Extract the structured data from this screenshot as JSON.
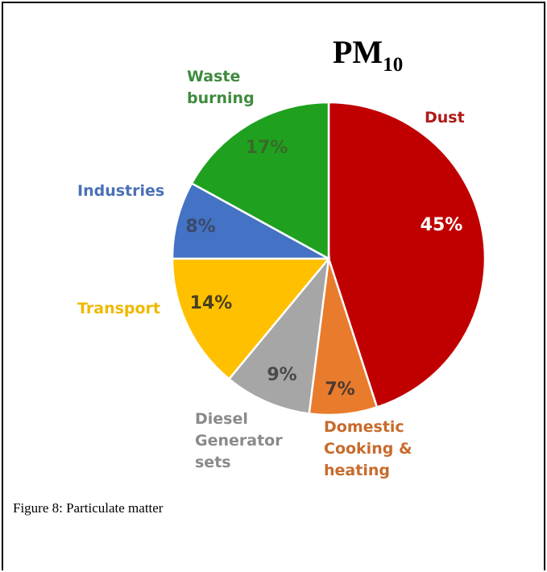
{
  "chart_data": {
    "type": "pie",
    "title": "PM",
    "title_subscript": "10",
    "slices": [
      {
        "label": "Dust",
        "value": 45,
        "value_label": "45%",
        "color": "#c00000",
        "label_color": "#b01818",
        "pct_color": "#ffffff",
        "label_lines": [
          "Dust"
        ]
      },
      {
        "label": "Domestic Cooking & heating",
        "value": 7,
        "value_label": "7%",
        "color": "#e97b2d",
        "label_color": "#c86b2c",
        "pct_color": "#4a3a30",
        "label_lines": [
          "Domestic",
          "Cooking &",
          "heating"
        ]
      },
      {
        "label": "Diesel Generator sets",
        "value": 9,
        "value_label": "9%",
        "color": "#a6a6a6",
        "label_color": "#8a8a8a",
        "pct_color": "#4a4a4a",
        "label_lines": [
          "Diesel",
          "Generator",
          "sets"
        ]
      },
      {
        "label": "Transport",
        "value": 14,
        "value_label": "14%",
        "color": "#ffc000",
        "label_color": "#f0b800",
        "pct_color": "#4a4020",
        "label_lines": [
          "Transport"
        ]
      },
      {
        "label": "Industries",
        "value": 8,
        "value_label": "8%",
        "color": "#4472c4",
        "label_color": "#4a70b8",
        "pct_color": "#3a4a6a",
        "label_lines": [
          "Industries"
        ]
      },
      {
        "label": "Waste burning",
        "value": 17,
        "value_label": "17%",
        "color": "#1fa11f",
        "label_color": "#3f8a3f",
        "pct_color": "#3a6a2a",
        "label_lines": [
          "Waste",
          "burning"
        ]
      }
    ]
  },
  "caption": "Figure 8: Particulate matter"
}
